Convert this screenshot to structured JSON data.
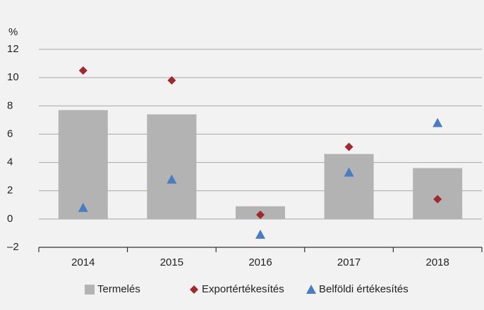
{
  "chart_data": {
    "type": "bar_markers",
    "y_unit": "%",
    "categories": [
      "2014",
      "2015",
      "2016",
      "2017",
      "2018"
    ],
    "series": [
      {
        "name": "Termelés",
        "kind": "bar",
        "color": "#b3b3b3",
        "values": [
          7.7,
          7.4,
          0.9,
          4.6,
          3.6
        ]
      },
      {
        "name": "Exportértékesítés",
        "kind": "diamond",
        "color": "#9e2a2f",
        "values": [
          10.5,
          9.8,
          0.3,
          5.1,
          1.4
        ]
      },
      {
        "name": "Belföldi értékesítés",
        "kind": "triangle",
        "color": "#4a7cc2",
        "values": [
          0.8,
          2.8,
          -1.1,
          3.3,
          6.8
        ]
      }
    ],
    "ylim": [
      -2,
      12
    ],
    "yticks": [
      {
        "value": -2,
        "label": "–2"
      },
      0,
      2,
      4,
      6,
      8,
      10,
      12
    ],
    "grid": true,
    "legend": "bottom"
  }
}
